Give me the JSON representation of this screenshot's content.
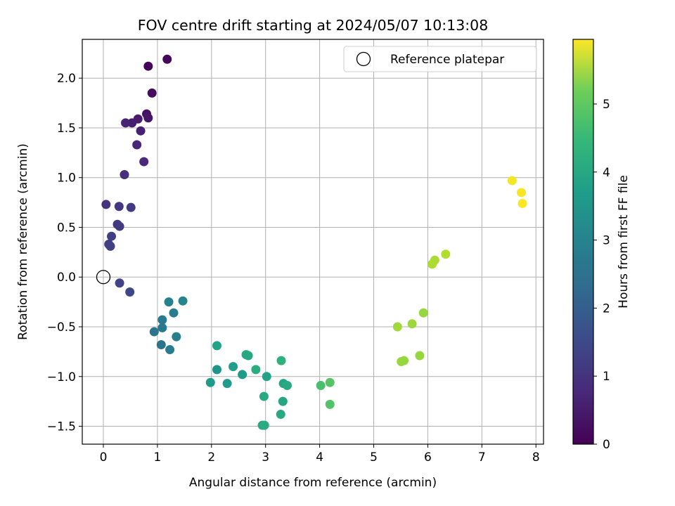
{
  "chart_data": {
    "type": "scatter",
    "title": "FOV centre drift starting at 2024/05/07 10:13:08",
    "xlabel": "Angular distance from reference (arcmin)",
    "ylabel": "Rotation from reference (arcmin)",
    "xlim": [
      -0.39,
      8.14
    ],
    "ylim": [
      -1.68,
      2.39
    ],
    "xticks": [
      "0",
      "1",
      "2",
      "3",
      "4",
      "5",
      "6",
      "7",
      "8"
    ],
    "yticks": [
      "−1.5",
      "−1.0",
      "−0.5",
      "0.0",
      "0.5",
      "1.0",
      "1.5",
      "2.0"
    ],
    "grid": true,
    "legend": {
      "placement": "upper right",
      "label": "Reference platepar"
    },
    "reference_point": {
      "x": 0,
      "y": 0
    },
    "colorbar": {
      "label": "Hours from first FF file",
      "range": [
        0,
        5.95
      ],
      "colormap": "viridis",
      "ticks": [
        "0",
        "1",
        "2",
        "3",
        "4",
        "5"
      ]
    },
    "series": [
      {
        "points": [
          {
            "x": 0.83,
            "y": 2.12,
            "c": 0.05
          },
          {
            "x": 1.18,
            "y": 2.19,
            "c": 0.1
          },
          {
            "x": 0.9,
            "y": 1.85,
            "c": 0.2
          },
          {
            "x": 0.8,
            "y": 1.64,
            "c": 0.3
          },
          {
            "x": 0.83,
            "y": 1.6,
            "c": 0.35
          },
          {
            "x": 0.64,
            "y": 1.59,
            "c": 0.45
          },
          {
            "x": 0.53,
            "y": 1.55,
            "c": 0.5
          },
          {
            "x": 0.41,
            "y": 1.55,
            "c": 0.55
          },
          {
            "x": 0.69,
            "y": 1.47,
            "c": 0.55
          },
          {
            "x": 0.62,
            "y": 1.33,
            "c": 0.65
          },
          {
            "x": 0.75,
            "y": 1.16,
            "c": 0.7
          },
          {
            "x": 0.39,
            "y": 1.03,
            "c": 0.8
          },
          {
            "x": 0.05,
            "y": 0.73,
            "c": 0.9
          },
          {
            "x": 0.29,
            "y": 0.71,
            "c": 0.95
          },
          {
            "x": 0.51,
            "y": 0.7,
            "c": 1.0
          },
          {
            "x": 0.26,
            "y": 0.53,
            "c": 1.0
          },
          {
            "x": 0.3,
            "y": 0.51,
            "c": 1.05
          },
          {
            "x": 0.15,
            "y": 0.41,
            "c": 1.1
          },
          {
            "x": 0.1,
            "y": 0.33,
            "c": 1.1
          },
          {
            "x": 0.13,
            "y": 0.31,
            "c": 1.15
          },
          {
            "x": 0.3,
            "y": -0.06,
            "c": 1.2
          },
          {
            "x": 0.49,
            "y": -0.15,
            "c": 1.3
          },
          {
            "x": 1.21,
            "y": -0.25,
            "c": 2.6
          },
          {
            "x": 1.47,
            "y": -0.24,
            "c": 2.7
          },
          {
            "x": 1.3,
            "y": -0.36,
            "c": 2.5
          },
          {
            "x": 1.09,
            "y": -0.43,
            "c": 2.45
          },
          {
            "x": 1.09,
            "y": -0.51,
            "c": 2.4
          },
          {
            "x": 0.94,
            "y": -0.55,
            "c": 2.3
          },
          {
            "x": 1.35,
            "y": -0.6,
            "c": 2.6
          },
          {
            "x": 1.07,
            "y": -0.68,
            "c": 2.3
          },
          {
            "x": 1.23,
            "y": -0.73,
            "c": 2.5
          },
          {
            "x": 2.1,
            "y": -0.69,
            "c": 3.4
          },
          {
            "x": 2.64,
            "y": -0.78,
            "c": 3.6
          },
          {
            "x": 2.68,
            "y": -0.79,
            "c": 3.55
          },
          {
            "x": 2.4,
            "y": -0.9,
            "c": 3.3
          },
          {
            "x": 2.1,
            "y": -0.93,
            "c": 3.1
          },
          {
            "x": 2.82,
            "y": -0.93,
            "c": 3.7
          },
          {
            "x": 2.57,
            "y": -0.98,
            "c": 3.2
          },
          {
            "x": 3.02,
            "y": -1.0,
            "c": 3.4
          },
          {
            "x": 1.98,
            "y": -1.06,
            "c": 3.2
          },
          {
            "x": 2.29,
            "y": -1.07,
            "c": 3.2
          },
          {
            "x": 3.29,
            "y": -0.84,
            "c": 3.8
          },
          {
            "x": 3.33,
            "y": -1.07,
            "c": 3.5
          },
          {
            "x": 3.4,
            "y": -1.09,
            "c": 3.6
          },
          {
            "x": 2.97,
            "y": -1.2,
            "c": 3.6
          },
          {
            "x": 3.32,
            "y": -1.25,
            "c": 3.5
          },
          {
            "x": 3.28,
            "y": -1.38,
            "c": 3.6
          },
          {
            "x": 2.94,
            "y": -1.49,
            "c": 3.6
          },
          {
            "x": 2.98,
            "y": -1.49,
            "c": 3.65
          },
          {
            "x": 4.02,
            "y": -1.09,
            "c": 4.2
          },
          {
            "x": 4.19,
            "y": -1.06,
            "c": 4.35
          },
          {
            "x": 4.19,
            "y": -1.28,
            "c": 4.3
          },
          {
            "x": 5.44,
            "y": -0.5,
            "c": 5.1
          },
          {
            "x": 5.71,
            "y": -0.47,
            "c": 5.05
          },
          {
            "x": 5.92,
            "y": -0.36,
            "c": 5.0
          },
          {
            "x": 5.51,
            "y": -0.85,
            "c": 5.0
          },
          {
            "x": 5.56,
            "y": -0.84,
            "c": 5.0
          },
          {
            "x": 5.85,
            "y": -0.79,
            "c": 5.0
          },
          {
            "x": 6.08,
            "y": 0.13,
            "c": 5.2
          },
          {
            "x": 6.13,
            "y": 0.17,
            "c": 5.2
          },
          {
            "x": 6.33,
            "y": 0.23,
            "c": 5.25
          },
          {
            "x": 7.56,
            "y": 0.97,
            "c": 5.85
          },
          {
            "x": 7.73,
            "y": 0.85,
            "c": 5.9
          },
          {
            "x": 7.75,
            "y": 0.74,
            "c": 5.95
          }
        ]
      }
    ]
  }
}
